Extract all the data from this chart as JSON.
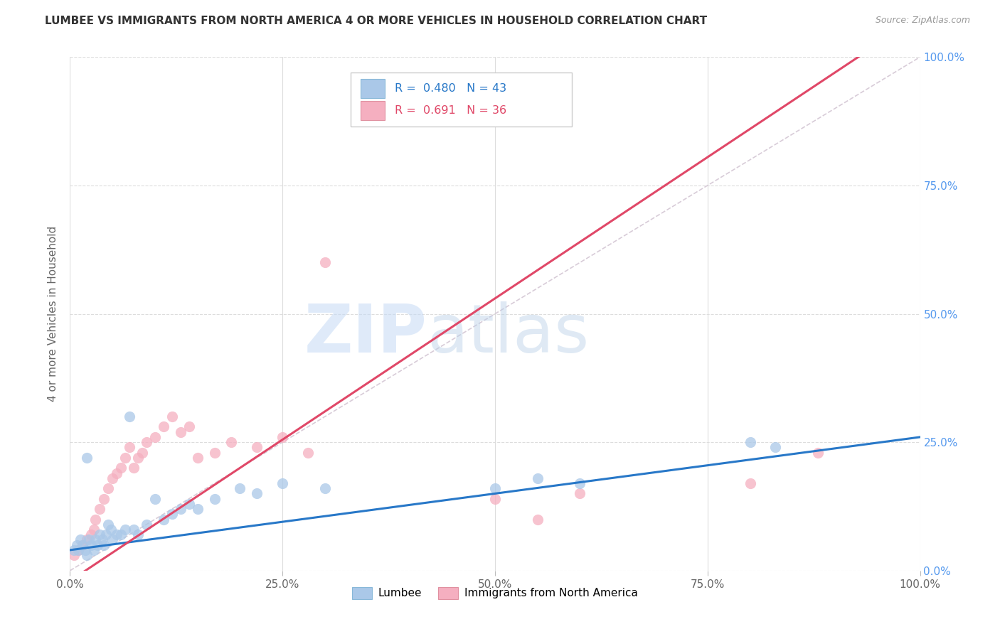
{
  "title": "LUMBEE VS IMMIGRANTS FROM NORTH AMERICA 4 OR MORE VEHICLES IN HOUSEHOLD CORRELATION CHART",
  "source": "Source: ZipAtlas.com",
  "ylabel": "4 or more Vehicles in Household",
  "background_color": "#ffffff",
  "lumbee_color": "#aac8e8",
  "immigrants_color": "#f5afc0",
  "lumbee_line_color": "#2878c8",
  "immigrants_line_color": "#e04868",
  "diagonal_color": "#d8ccd8",
  "R_lumbee": 0.48,
  "N_lumbee": 43,
  "R_immigrants": 0.691,
  "N_immigrants": 36,
  "xlim": [
    0,
    1.0
  ],
  "ylim": [
    0,
    1.0
  ],
  "xtick_vals": [
    0.0,
    0.25,
    0.5,
    0.75,
    1.0
  ],
  "xtick_labels": [
    "0.0%",
    "25.0%",
    "50.0%",
    "75.0%",
    "100.0%"
  ],
  "ytick_vals": [
    0.0,
    0.25,
    0.5,
    0.75,
    1.0
  ],
  "ytick_labels_right": [
    "0.0%",
    "25.0%",
    "50.0%",
    "75.0%",
    "100.0%"
  ],
  "lumbee_x": [
    0.005,
    0.008,
    0.01,
    0.012,
    0.015,
    0.018,
    0.02,
    0.022,
    0.025,
    0.028,
    0.03,
    0.032,
    0.035,
    0.038,
    0.04,
    0.042,
    0.045,
    0.048,
    0.05,
    0.055,
    0.06,
    0.065,
    0.07,
    0.075,
    0.08,
    0.09,
    0.1,
    0.11,
    0.12,
    0.13,
    0.14,
    0.15,
    0.17,
    0.2,
    0.22,
    0.25,
    0.3,
    0.5,
    0.55,
    0.6,
    0.8,
    0.83,
    0.02
  ],
  "lumbee_y": [
    0.04,
    0.05,
    0.04,
    0.06,
    0.05,
    0.04,
    0.22,
    0.06,
    0.05,
    0.04,
    0.06,
    0.05,
    0.07,
    0.06,
    0.05,
    0.07,
    0.09,
    0.08,
    0.06,
    0.07,
    0.07,
    0.08,
    0.3,
    0.08,
    0.07,
    0.09,
    0.14,
    0.1,
    0.11,
    0.12,
    0.13,
    0.12,
    0.14,
    0.16,
    0.15,
    0.17,
    0.16,
    0.16,
    0.18,
    0.17,
    0.25,
    0.24,
    0.03
  ],
  "immigrants_x": [
    0.005,
    0.01,
    0.015,
    0.02,
    0.025,
    0.028,
    0.03,
    0.035,
    0.04,
    0.045,
    0.05,
    0.055,
    0.06,
    0.065,
    0.07,
    0.075,
    0.08,
    0.085,
    0.09,
    0.1,
    0.11,
    0.12,
    0.13,
    0.14,
    0.15,
    0.17,
    0.19,
    0.22,
    0.25,
    0.28,
    0.3,
    0.5,
    0.55,
    0.6,
    0.8,
    0.88
  ],
  "immigrants_y": [
    0.03,
    0.04,
    0.05,
    0.06,
    0.07,
    0.08,
    0.1,
    0.12,
    0.14,
    0.16,
    0.18,
    0.19,
    0.2,
    0.22,
    0.24,
    0.2,
    0.22,
    0.23,
    0.25,
    0.26,
    0.28,
    0.3,
    0.27,
    0.28,
    0.22,
    0.23,
    0.25,
    0.24,
    0.26,
    0.23,
    0.6,
    0.14,
    0.1,
    0.15,
    0.17,
    0.23
  ]
}
